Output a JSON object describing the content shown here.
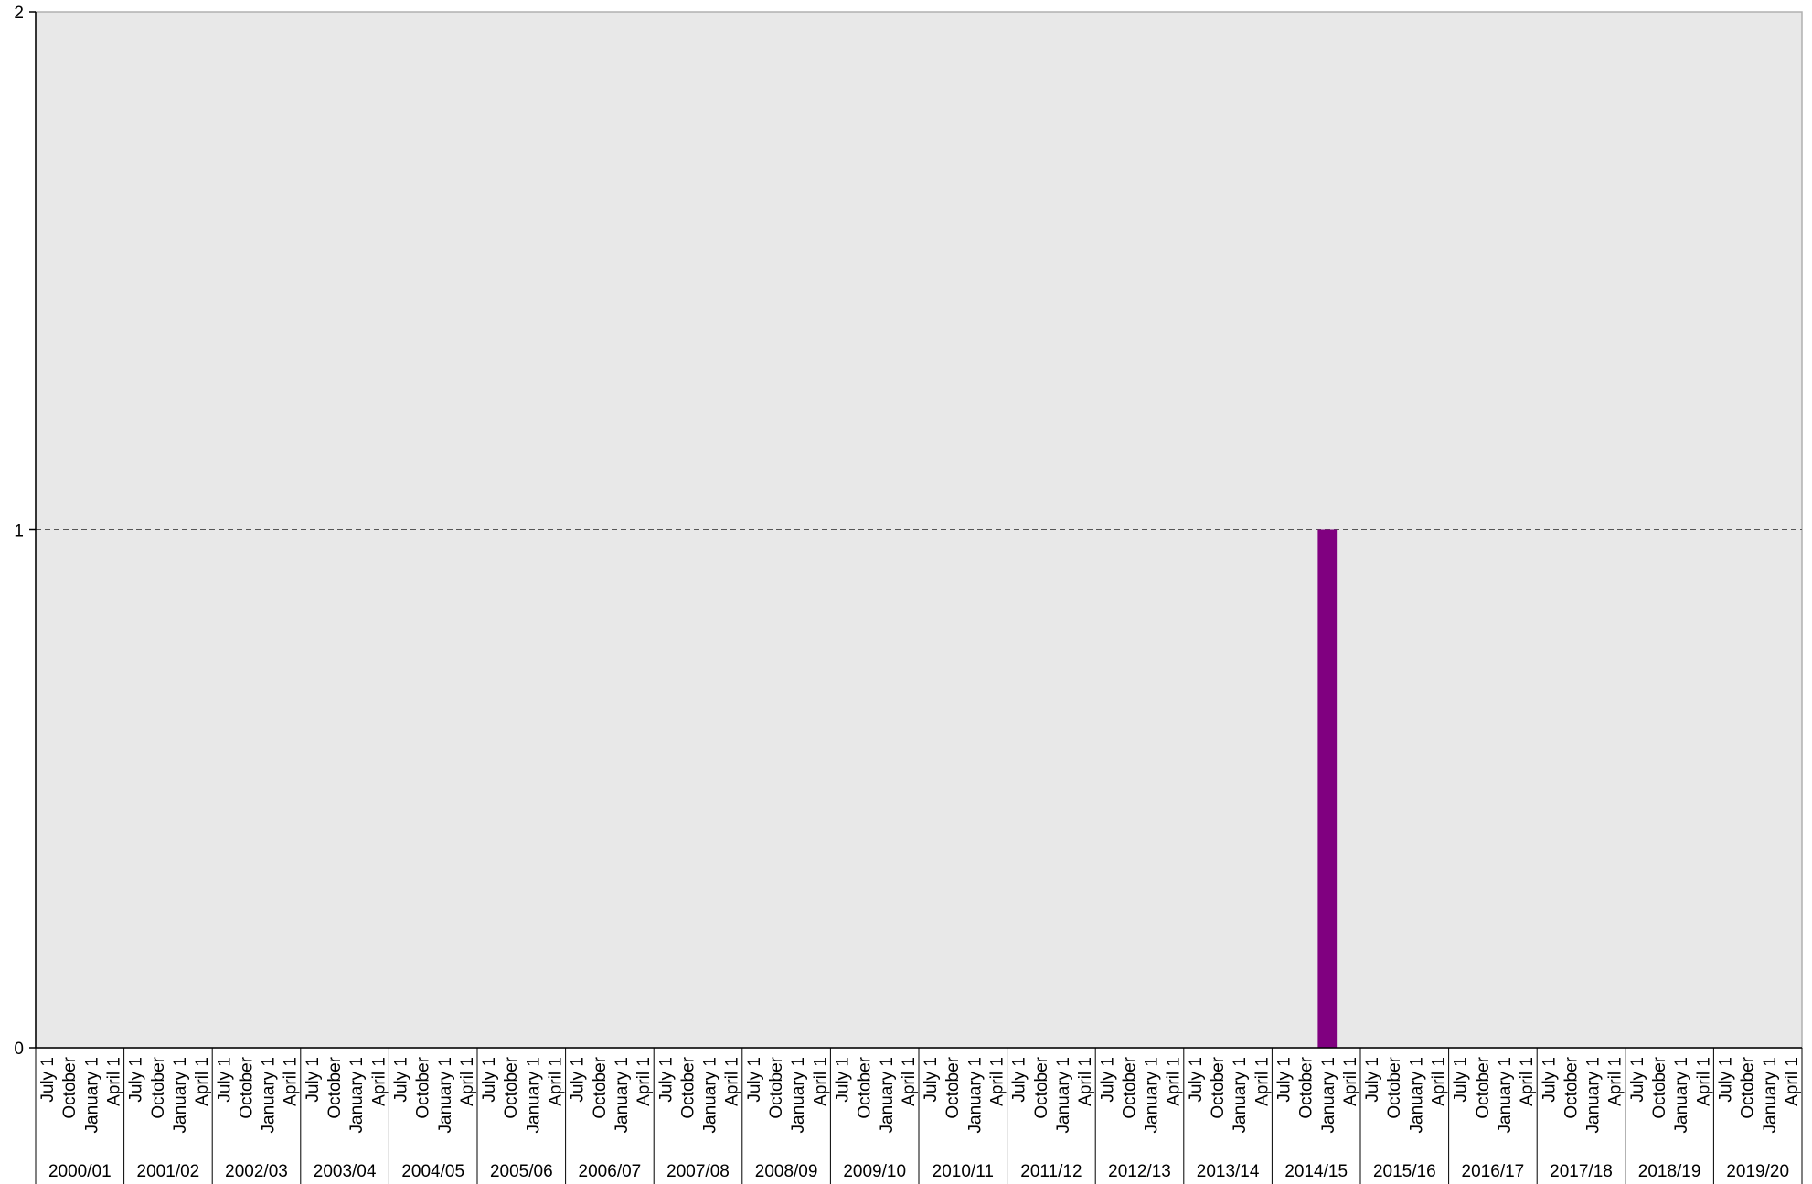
{
  "chart_data": {
    "type": "bar",
    "title": "",
    "xlabel": "",
    "ylabel": "",
    "ylim": [
      0,
      2
    ],
    "yticks": [
      "0",
      "1",
      "2"
    ],
    "grid": "horizontal-dashed",
    "background_color": "#e8e8e8",
    "bar_color": "#800080",
    "quarters": [
      "July 1",
      "October",
      "January 1",
      "April 1"
    ],
    "years": [
      "2000/01",
      "2001/02",
      "2002/03",
      "2003/04",
      "2004/05",
      "2005/06",
      "2006/07",
      "2007/08",
      "2008/09",
      "2009/10",
      "2010/11",
      "2011/12",
      "2012/13",
      "2013/14",
      "2014/15",
      "2015/16",
      "2016/17",
      "2017/18",
      "2018/19",
      "2019/20"
    ],
    "values": [
      0,
      0,
      0,
      0,
      0,
      0,
      0,
      0,
      0,
      0,
      0,
      0,
      0,
      0,
      0,
      0,
      0,
      0,
      0,
      0,
      0,
      0,
      0,
      0,
      0,
      0,
      0,
      0,
      0,
      0,
      0,
      0,
      0,
      0,
      0,
      0,
      0,
      0,
      0,
      0,
      0,
      0,
      0,
      0,
      0,
      0,
      0,
      0,
      0,
      0,
      0,
      0,
      0,
      0,
      0,
      0,
      0,
      0,
      1,
      0,
      0,
      0,
      0,
      0,
      0,
      0,
      0,
      0,
      0,
      0,
      0,
      0,
      0,
      0,
      0,
      0,
      0,
      0,
      0,
      0
    ]
  }
}
